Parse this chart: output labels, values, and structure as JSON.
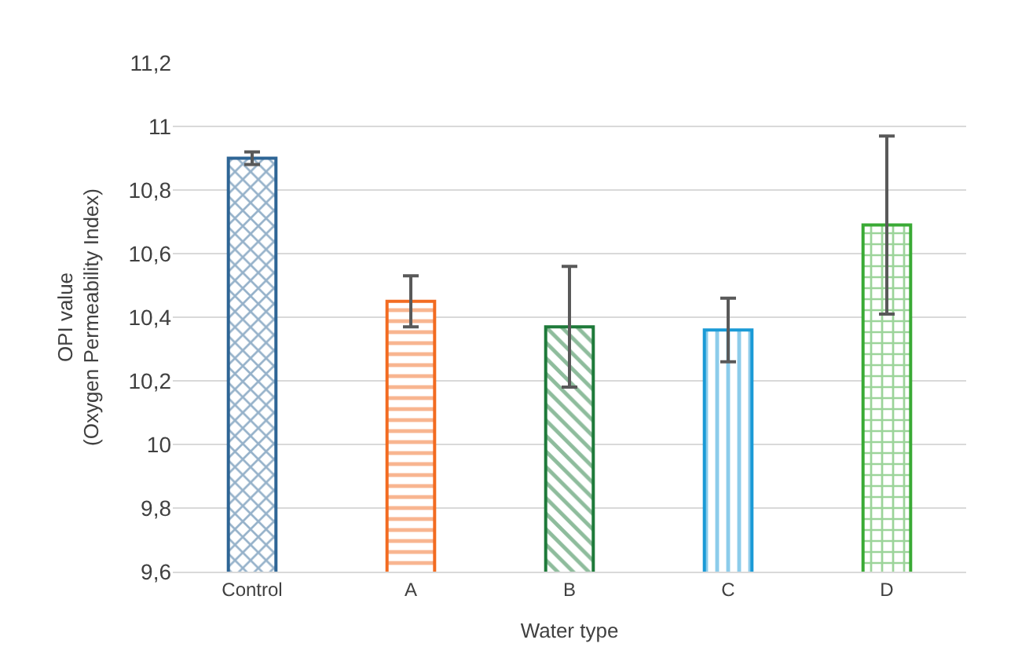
{
  "chart_data": {
    "type": "bar",
    "xlabel": "Water type",
    "ylabel": "OPI value\n(Oxygen Permeability Index)",
    "categories": [
      "Control",
      "A",
      "B",
      "C",
      "D"
    ],
    "values": [
      10.9,
      10.45,
      10.37,
      10.36,
      10.69
    ],
    "errors": [
      0.02,
      0.08,
      0.19,
      0.1,
      0.28
    ],
    "colors": [
      "#2e6595",
      "#f26b21",
      "#1e7a3a",
      "#1a9ad6",
      "#3aaa35"
    ],
    "ylim": [
      9.6,
      11.2
    ],
    "yticks": [
      {
        "value": 9.6,
        "label": "9,6"
      },
      {
        "value": 9.8,
        "label": "9,8"
      },
      {
        "value": 10,
        "label": "10"
      },
      {
        "value": 10.2,
        "label": "10,2"
      },
      {
        "value": 10.4,
        "label": "10,4"
      },
      {
        "value": 10.6,
        "label": "10,6"
      },
      {
        "value": 10.8,
        "label": "10,8"
      },
      {
        "value": 11,
        "label": "11"
      },
      {
        "value": 11.2,
        "label": "11,2"
      }
    ],
    "grid": "y"
  }
}
